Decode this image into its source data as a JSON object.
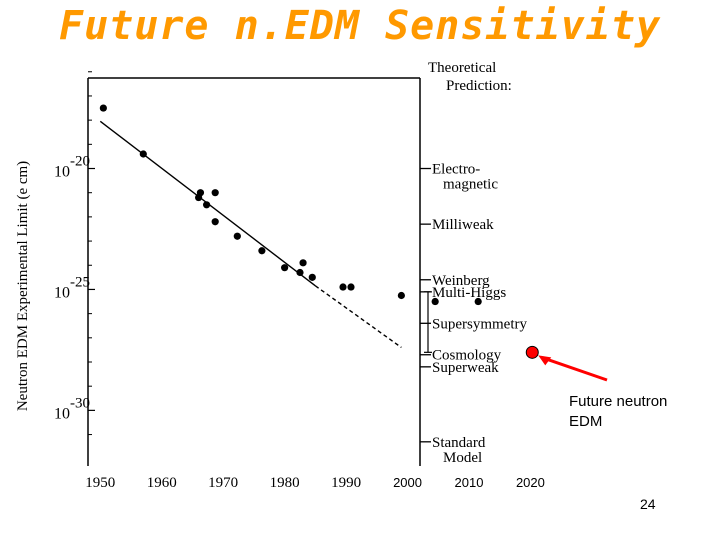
{
  "slide": {
    "title": "Future n.EDM Sensitivity",
    "page_number": "24",
    "future_label_line1": "Future neutron",
    "future_label_line2": "EDM",
    "future_color": "#ff0000"
  },
  "chart_data": {
    "type": "scatter",
    "ylabel": "Neutron EDM Experimental Limit (e cm)",
    "y_scale": "log",
    "y_ticks": [
      {
        "base": "10",
        "exp": "-20",
        "value": 1e-20
      },
      {
        "base": "10",
        "exp": "-25",
        "value": 1e-25
      },
      {
        "base": "10",
        "exp": "-30",
        "value": 1e-30
      }
    ],
    "x_ticks": [
      "1950",
      "1960",
      "1970",
      "1980",
      "1990",
      "2000",
      "2010",
      "2020"
    ],
    "xlim": [
      1948,
      2024
    ],
    "ylim_exp": [
      -32.3,
      -15.1
    ],
    "grid": false,
    "series": [
      {
        "points": [
          {
            "x": 1950.5,
            "y": -17.5
          },
          {
            "x": 1957.0,
            "y": -19.4
          },
          {
            "x": 1966.0,
            "y": -21.2
          },
          {
            "x": 1966.3,
            "y": -21.0
          },
          {
            "x": 1967.3,
            "y": -21.5
          },
          {
            "x": 1968.7,
            "y": -21.0
          },
          {
            "x": 1968.7,
            "y": -22.2
          },
          {
            "x": 1972.3,
            "y": -22.8
          },
          {
            "x": 1976.3,
            "y": -23.4
          },
          {
            "x": 1980.0,
            "y": -24.1
          },
          {
            "x": 1982.5,
            "y": -24.3
          },
          {
            "x": 1983.0,
            "y": -23.9
          },
          {
            "x": 1984.5,
            "y": -24.5
          },
          {
            "x": 1989.5,
            "y": -24.9
          },
          {
            "x": 1990.8,
            "y": -24.9
          },
          {
            "x": 1999.0,
            "y": -25.25
          },
          {
            "x": 2004.5,
            "y": -25.5
          },
          {
            "x": 2011.5,
            "y": -25.5
          }
        ]
      }
    ],
    "trend": [
      {
        "x": 1950.0,
        "y": -18.05
      },
      {
        "x": 1985.0,
        "y": -24.85
      },
      {
        "x": 1999.0,
        "y": -27.4
      }
    ],
    "future_point": {
      "x": 2020.3,
      "y": -27.6
    },
    "theory_title_line1": "Theoretical",
    "theory_title_line2": "Prediction:",
    "theory_labels": [
      {
        "lines": [
          "Electro-",
          "magnetic"
        ],
        "y": -20.0
      },
      {
        "lines": [
          "Milliweak"
        ],
        "y": -22.3
      },
      {
        "lines": [
          "Weinberg"
        ],
        "y": -24.6
      },
      {
        "lines": [
          "Multi-Higgs"
        ],
        "y": -25.1
      },
      {
        "lines": [
          "Supersymmetry"
        ],
        "y": -26.4
      },
      {
        "lines": [
          "Cosmology"
        ],
        "y": -27.7
      },
      {
        "lines": [
          "Superweak"
        ],
        "y": -28.2
      },
      {
        "lines": [
          "Standard",
          "Model"
        ],
        "y": -31.3
      }
    ]
  }
}
